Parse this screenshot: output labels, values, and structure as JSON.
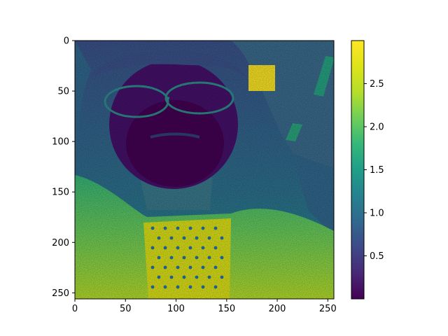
{
  "chart_data": {
    "type": "heatmap",
    "title": "",
    "xlabel": "",
    "ylabel": "",
    "colormap": "viridis",
    "image_size": [
      256,
      256
    ],
    "xlim": [
      0,
      256
    ],
    "ylim": [
      256,
      0
    ],
    "x_ticks": [
      0,
      50,
      100,
      150,
      200,
      250
    ],
    "x_tick_labels": [
      "0",
      "50",
      "100",
      "150",
      "200",
      "250"
    ],
    "y_ticks": [
      0,
      50,
      100,
      150,
      200,
      250
    ],
    "y_tick_labels": [
      "0",
      "50",
      "100",
      "150",
      "200",
      "250"
    ],
    "colorbar": {
      "range": [
        0.0,
        3.0
      ],
      "ticks": [
        0.5,
        1.0,
        1.5,
        2.0,
        2.5
      ],
      "tick_labels": [
        "0.5",
        "1.0",
        "1.5",
        "2.0",
        "2.5"
      ]
    },
    "regions": [
      {
        "region": "background",
        "value": 0.9
      },
      {
        "region": "hair",
        "value": 0.6
      },
      {
        "region": "face",
        "value": 0.15
      },
      {
        "region": "glasses_frame",
        "value": 1.2
      },
      {
        "region": "neck",
        "value": 1.3
      },
      {
        "region": "shoulders",
        "value": 2.3
      },
      {
        "region": "shirt_panel",
        "value": 2.75
      },
      {
        "region": "bright_square",
        "value": 3.0,
        "x_range": [
          171,
          197
        ],
        "y_range": [
          24,
          50
        ]
      }
    ],
    "grid": false,
    "legend": "none"
  }
}
